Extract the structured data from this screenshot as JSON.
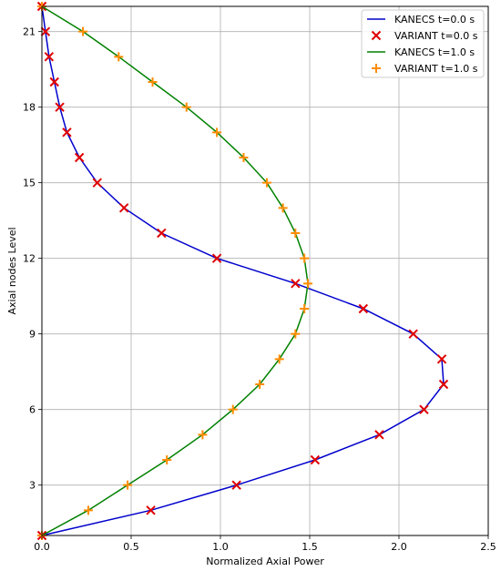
{
  "chart_data": {
    "type": "line",
    "xlabel": "Normalized Axial Power",
    "ylabel": "Axial nodes Level",
    "xlim": [
      0,
      2.5
    ],
    "ylim": [
      1,
      22
    ],
    "xticks": [
      0.0,
      0.5,
      1.0,
      1.5,
      2.0,
      2.5
    ],
    "yticks": [
      3,
      6,
      9,
      12,
      15,
      18,
      21
    ],
    "xtick_labels": [
      "0.0",
      "0.5",
      "1.0",
      "1.5",
      "2.0",
      "2.5"
    ],
    "ytick_labels": [
      "3",
      "6",
      "9",
      "12",
      "15",
      "18",
      "21"
    ],
    "grid": true,
    "legend_position": "top-right",
    "series": [
      {
        "name": "KANECS  t=0.0 s",
        "style": "line",
        "color": "#0000cc",
        "x": [
          0.0,
          0.61,
          1.09,
          1.53,
          1.89,
          2.14,
          2.25,
          2.24,
          2.08,
          1.8,
          1.42,
          0.98,
          0.67,
          0.46,
          0.31,
          0.21,
          0.14,
          0.1,
          0.07,
          0.04,
          0.02,
          0.0
        ],
        "y": [
          1,
          2,
          3,
          4,
          5,
          6,
          7,
          8,
          9,
          10,
          11,
          12,
          13,
          14,
          15,
          16,
          17,
          18,
          19,
          20,
          21,
          22
        ]
      },
      {
        "name": "VARIANT t=0.0 s",
        "style": "x-marker",
        "color": "#e00000",
        "x": [
          0.0,
          0.61,
          1.09,
          1.53,
          1.89,
          2.14,
          2.25,
          2.24,
          2.08,
          1.8,
          1.42,
          0.98,
          0.67,
          0.46,
          0.31,
          0.21,
          0.14,
          0.1,
          0.07,
          0.04,
          0.02,
          0.0
        ],
        "y": [
          1,
          2,
          3,
          4,
          5,
          6,
          7,
          8,
          9,
          10,
          11,
          12,
          13,
          14,
          15,
          16,
          17,
          18,
          19,
          20,
          21,
          22
        ]
      },
      {
        "name": "KANECS  t=1.0 s",
        "style": "line",
        "color": "#008000",
        "x": [
          0.0,
          0.26,
          0.48,
          0.7,
          0.9,
          1.07,
          1.22,
          1.33,
          1.42,
          1.47,
          1.49,
          1.47,
          1.42,
          1.35,
          1.26,
          1.13,
          0.98,
          0.81,
          0.62,
          0.43,
          0.23,
          0.0
        ],
        "y": [
          1,
          2,
          3,
          4,
          5,
          6,
          7,
          8,
          9,
          10,
          11,
          12,
          13,
          14,
          15,
          16,
          17,
          18,
          19,
          20,
          21,
          22
        ]
      },
      {
        "name": "VARIANT t=1.0 s",
        "style": "plus-marker",
        "color": "#ff8c00",
        "x": [
          0.0,
          0.26,
          0.48,
          0.7,
          0.9,
          1.07,
          1.22,
          1.33,
          1.42,
          1.47,
          1.49,
          1.47,
          1.42,
          1.35,
          1.26,
          1.13,
          0.98,
          0.81,
          0.62,
          0.43,
          0.23,
          0.0
        ],
        "y": [
          1,
          2,
          3,
          4,
          5,
          6,
          7,
          8,
          9,
          10,
          11,
          12,
          13,
          14,
          15,
          16,
          17,
          18,
          19,
          20,
          21,
          22
        ]
      }
    ]
  }
}
